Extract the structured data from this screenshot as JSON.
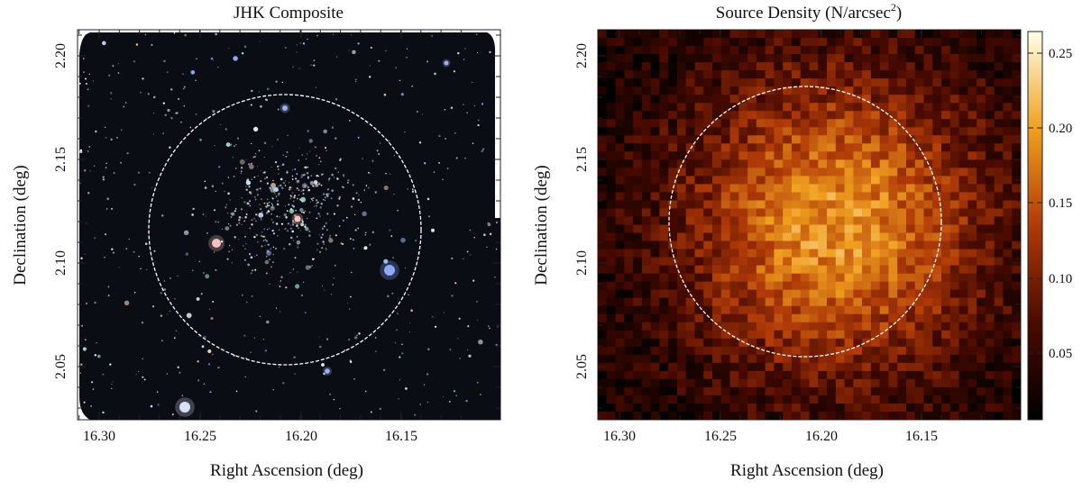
{
  "figure": {
    "panels": [
      {
        "title": "JHK Composite",
        "xlabel": "Right Ascension (deg)",
        "ylabel": "Declination (deg)",
        "xticks": [
          "16.30",
          "16.25",
          "16.20",
          "16.15"
        ],
        "yticks": [
          "2.20",
          "2.15",
          "2.10",
          "2.05"
        ]
      },
      {
        "title": "Source Density (N/arcsec",
        "title_sup": "2",
        "title_close": ")",
        "xlabel": "Right Ascension (deg)",
        "ylabel": "Declination (deg)",
        "xticks": [
          "16.30",
          "16.25",
          "16.20",
          "16.15"
        ],
        "yticks": [
          "2.20",
          "2.15",
          "2.10",
          "2.05"
        ],
        "colorbar_ticks": [
          "0.25",
          "0.20",
          "0.15",
          "0.10",
          "0.05"
        ]
      }
    ]
  },
  "chart_data": [
    {
      "type": "image",
      "description": "JHK composite near-infrared image of a field of stars and galaxies; dashed circle marks the aperture",
      "xlabel": "Right Ascension (deg)",
      "ylabel": "Declination (deg)",
      "xlim": [
        16.31,
        16.105
      ],
      "ylim": [
        2.02,
        2.21
      ],
      "x_axis_reversed": true,
      "overlay_circle": {
        "center_ra": 16.21,
        "center_dec": 2.11,
        "radius_deg": 0.065,
        "style": "dashed",
        "color": "#ffffff"
      },
      "background_color": "#0b0d14"
    },
    {
      "type": "heatmap",
      "xlabel": "Right Ascension (deg)",
      "ylabel": "Declination (deg)",
      "xlim": [
        16.31,
        16.105
      ],
      "ylim": [
        2.02,
        2.21
      ],
      "x_axis_reversed": true,
      "grid_size": [
        48,
        48
      ],
      "value_peak": 0.26,
      "value_background": 0.02,
      "peak_center_ra": 16.195,
      "peak_center_dec": 2.115,
      "colorbar_range": [
        0.0,
        0.265
      ],
      "colormap": "hot-orange",
      "overlay_circle": {
        "center_ra": 16.21,
        "center_dec": 2.11,
        "radius_deg": 0.065,
        "style": "dashed",
        "color": "#ffffff"
      }
    }
  ],
  "colors": {
    "background": "#ffffff",
    "sky": "#0b0d14",
    "circle": "#ffffff",
    "cmap_low": "#000000",
    "cmap_mid": "#c0400a",
    "cmap_high": "#ffffe0"
  }
}
